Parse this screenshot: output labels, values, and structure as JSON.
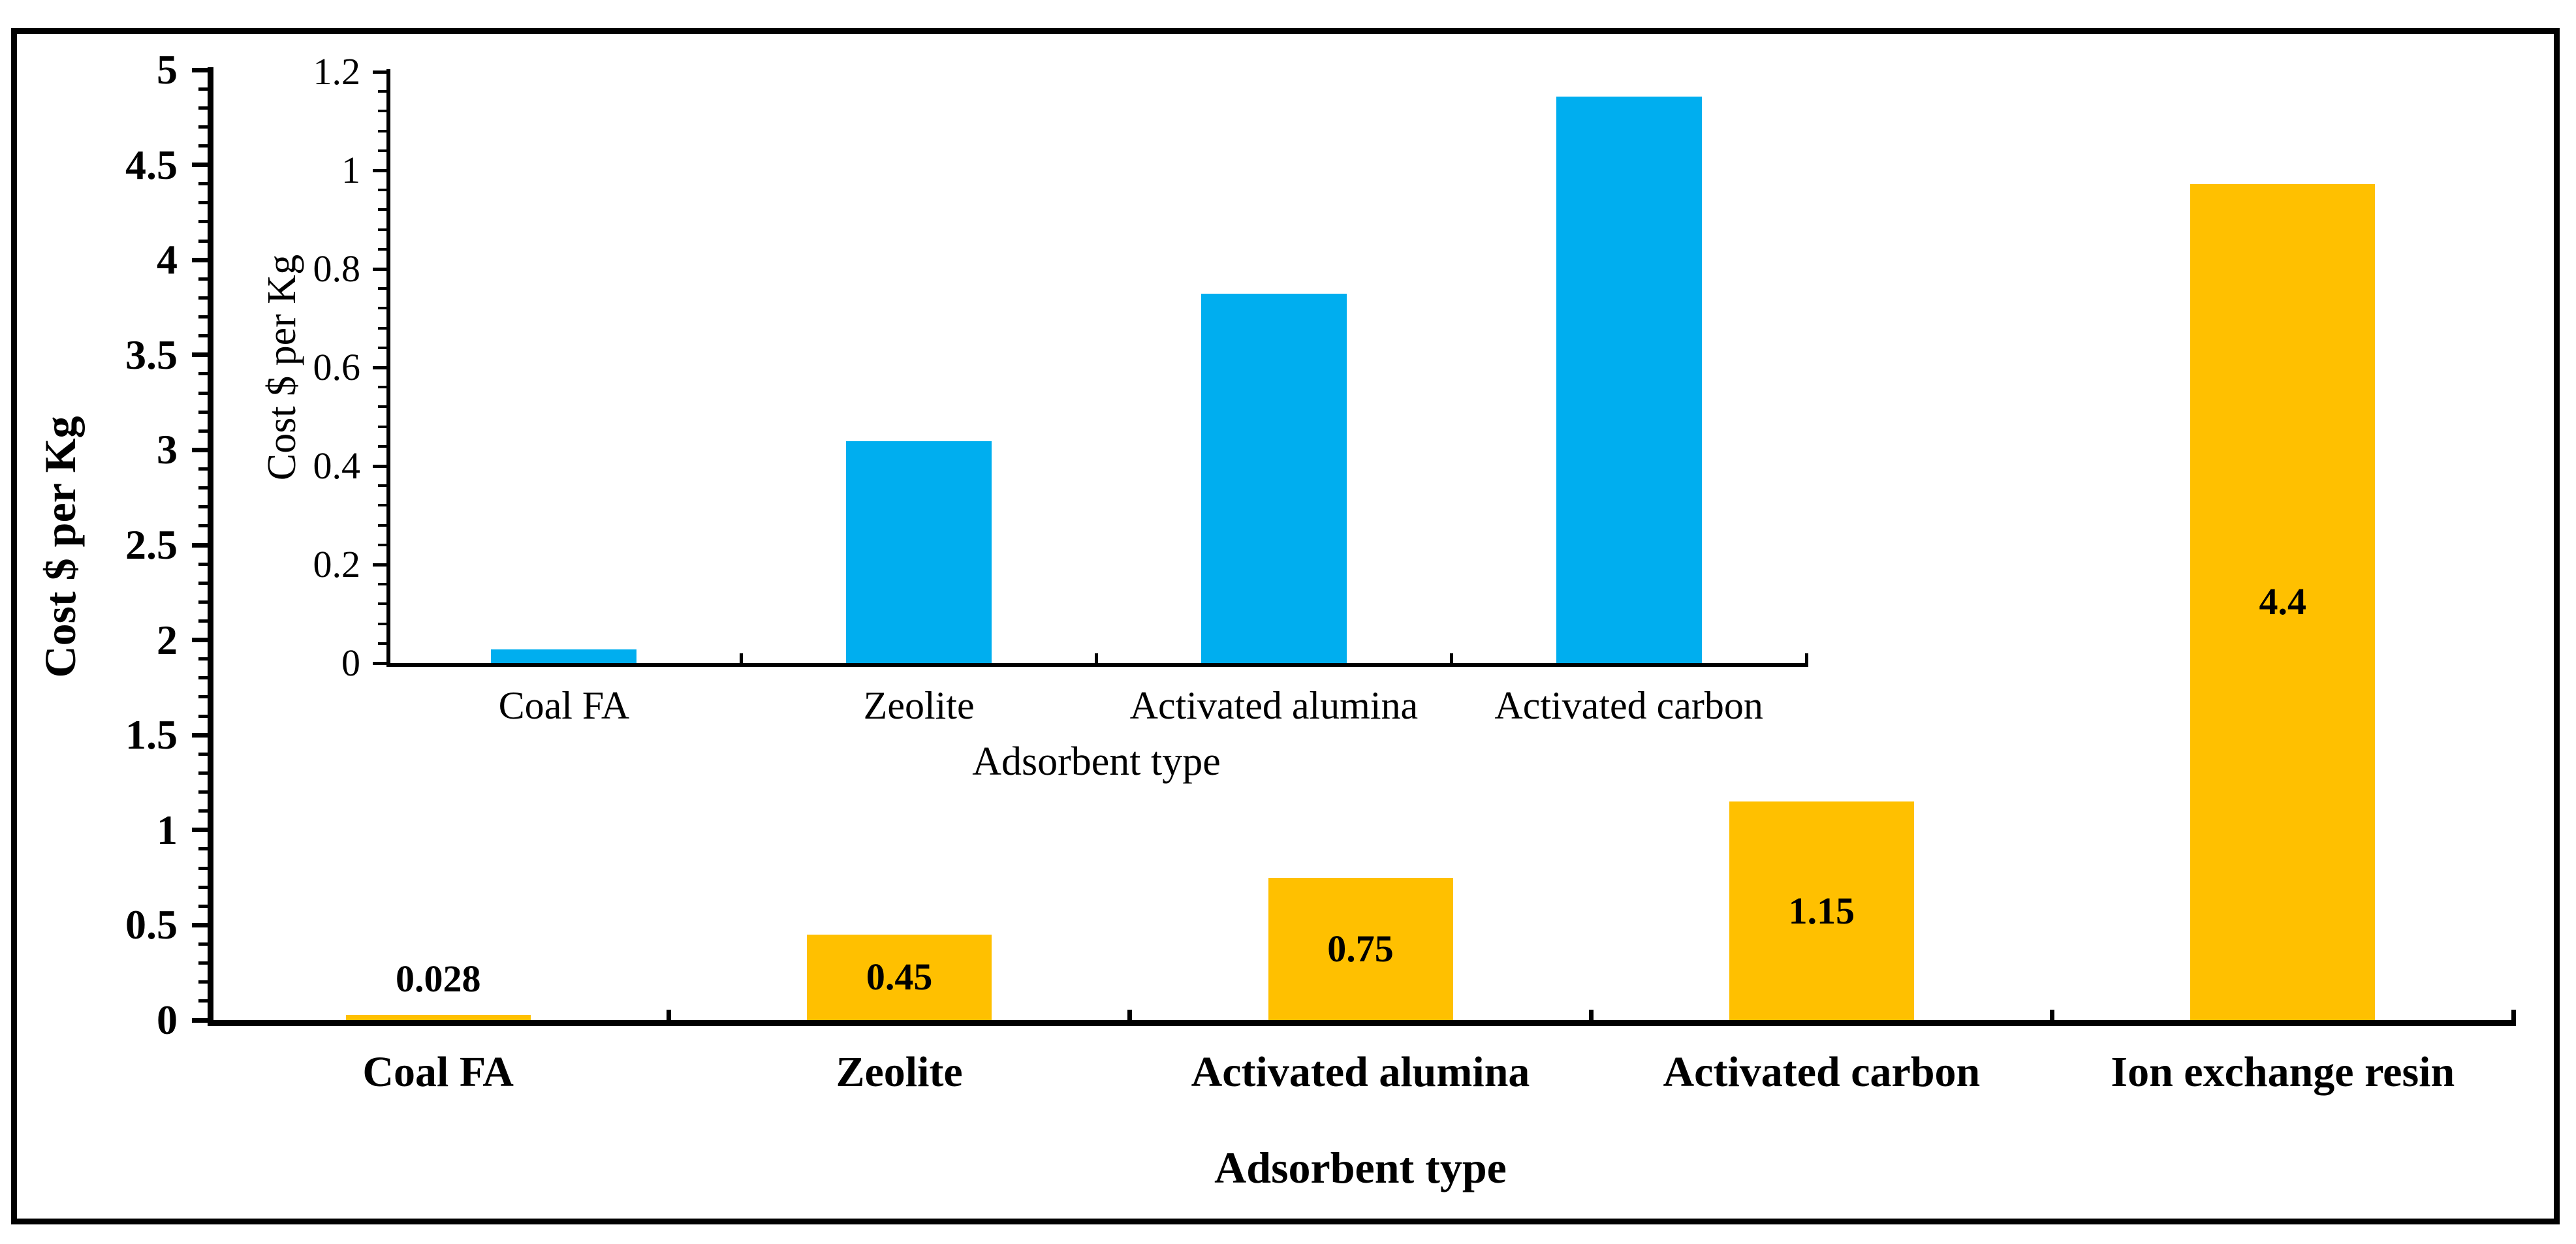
{
  "figure": {
    "background_color": "#ffffff",
    "frame_border_color": "#000000",
    "axis_color": "#000000",
    "text_color": "#000000"
  },
  "chart_data": [
    {
      "id": "main",
      "type": "bar",
      "title": "",
      "categories": [
        "Coal FA",
        "Zeolite",
        "Activated alumina",
        "Activated carbon",
        "Ion exchange resin"
      ],
      "values": [
        0.028,
        0.45,
        0.75,
        1.15,
        4.4
      ],
      "value_labels": [
        "0.028",
        "0.45",
        "0.75",
        "1.15",
        "4.4"
      ],
      "xlabel": "Adsorbent type",
      "ylabel": "Cost $ per Kg",
      "ylim": [
        0,
        5
      ],
      "ytick_step": 0.5,
      "yminor_step": 0.1,
      "ytick_labels": [
        "0",
        "0.5",
        "1",
        "1.5",
        "2",
        "2.5",
        "3",
        "3.5",
        "4",
        "4.5",
        "5"
      ],
      "bar_color": "#FFC000",
      "grid": false,
      "legend": null
    },
    {
      "id": "inset",
      "type": "bar",
      "title": "",
      "categories": [
        "Coal FA",
        "Zeolite",
        "Activated alumina",
        "Activated carbon"
      ],
      "values": [
        0.028,
        0.45,
        0.75,
        1.15
      ],
      "value_labels": [],
      "xlabel": "Adsorbent type",
      "ylabel": "Cost $ per Kg",
      "ylim": [
        0,
        1.2
      ],
      "ytick_step": 0.2,
      "yminor_step": 0.04,
      "ytick_labels": [
        "0",
        "0.2",
        "0.4",
        "0.6",
        "0.8",
        "1",
        "1.2"
      ],
      "bar_color": "#00AEEF",
      "grid": false,
      "legend": null
    }
  ]
}
